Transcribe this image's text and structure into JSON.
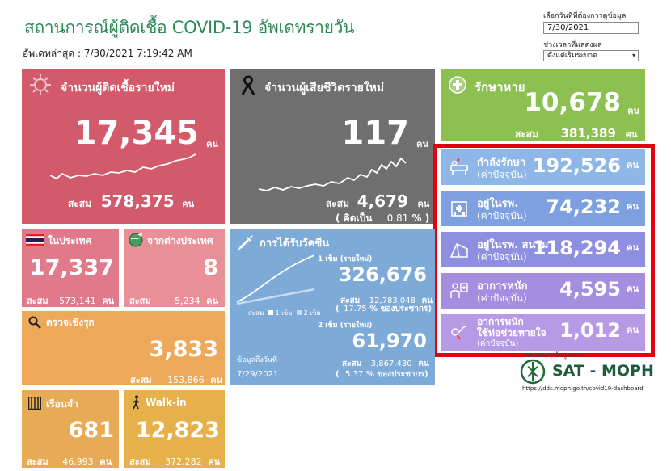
{
  "header": {
    "title": "สถานการณ์ผู้ติดเชื้อ COVID-19 อัพเดทรายวัน",
    "updated_label": "อัพเดทล่าสุด :",
    "updated_value": "7/30/2021 7:19:42 AM"
  },
  "controls": {
    "date_label": "เลือกวันที่ที่ต้องการดูข้อมูล",
    "date_value": "7/30/2021",
    "range_label": "ช่วงเวลาที่แสดงผล",
    "range_value": "ตั้งแต่เริ่มระบาด"
  },
  "new_cases": {
    "title": "จำนวนผู้ติดเชื้อรายใหม่",
    "value": "17,345",
    "unit": "คน",
    "cum_label": "สะสม",
    "cum_value": "578,375",
    "cum_unit": "คน"
  },
  "new_deaths": {
    "title": "จำนวนผู้เสียชีวิตรายใหม่",
    "value": "117",
    "unit": "คน",
    "cum_label": "สะสม",
    "cum_value": "4,679",
    "cum_unit": "คน",
    "pct_label": "( คิดเป็น",
    "pct_value": "0.81",
    "pct_suffix": "% )"
  },
  "recovered": {
    "title": "รักษาหาย",
    "value": "10,678",
    "unit": "คน",
    "cum_label": "สะสม",
    "cum_value": "381,389",
    "cum_unit": "คน"
  },
  "hospital": [
    {
      "line1": "กำลังรักษา",
      "line2": "(ค่าปัจจุบัน)",
      "value": "192,526",
      "unit": "คน",
      "color": "#8eb6e6",
      "icon": "hospital-bed-icon"
    },
    {
      "line1": "อยู่ในรพ.",
      "line2": "(ค่าปัจจุบัน)",
      "value": "74,232",
      "unit": "คน",
      "color": "#7fa0e0",
      "icon": "hospital-building-icon"
    },
    {
      "line1": "อยู่ในรพ. สนาม",
      "line2": "(ค่าปัจจุบัน)",
      "value": "118,294",
      "unit": "คน",
      "color": "#8e8fe0",
      "icon": "field-tent-icon"
    },
    {
      "line1": "อาการหนัก",
      "line2": "(ค่าปัจจุบัน)",
      "value": "4,595",
      "unit": "คน",
      "color": "#a48ee0",
      "icon": "severe-patient-icon"
    },
    {
      "line1": "อาการหนัก",
      "line2": "ใช้ท่อช่วยหายใจ",
      "line3": "(ค่าปัจจุบัน)",
      "value": "1,012",
      "unit": "คน",
      "color": "#b79ae6",
      "icon": "ventilator-icon"
    }
  ],
  "local": {
    "title": "ในประเทศ",
    "value": "17,337",
    "cum_label": "สะสม",
    "cum_value": "573,141",
    "cum_unit": "คน"
  },
  "abroad": {
    "title": "จากต่างประเทศ",
    "value": "8",
    "cum_label": "สะสม",
    "cum_value": "5,234",
    "cum_unit": "คน"
  },
  "vaccine": {
    "title": "การได้รับวัคซีน",
    "dose1_label": "1 เข็ม (รายใหม่)",
    "dose1_value": "326,676",
    "dose1_cum_label": "สะสม",
    "dose1_cum_value": "12,783,048",
    "dose1_cum_unit": "คน",
    "dose1_pct": "17.75",
    "dose1_pct_suffix": "% ของประชากร)",
    "dose2_label": "2 เข็ม (รายใหม่)",
    "dose2_value": "61,970",
    "dose2_cum_label": "สะสม",
    "dose2_cum_value": "3,867,430",
    "dose2_cum_unit": "คน",
    "dose2_pct": "5.37",
    "dose2_pct_suffix": "% ของประชากร)",
    "legend_cum": "สะสม",
    "legend_d1": "1 เข็ม",
    "legend_d2": "2 เข็ม",
    "data_as_of_label": "ข้อมูลถึงวันที่",
    "data_as_of_value": "7/29/2021"
  },
  "screening": {
    "title": "ตรวจเชิงรุก",
    "value": "3,833",
    "cum_label": "สะสม",
    "cum_value": "153,866",
    "cum_unit": "คน"
  },
  "prison": {
    "title": "เรือนจำ",
    "value": "681",
    "cum_label": "สะสม",
    "cum_value": "46,993",
    "cum_unit": "คน"
  },
  "walkin": {
    "title": "Walk-in",
    "value": "12,823",
    "cum_label": "สะสม",
    "cum_value": "372,282",
    "cum_unit": "คน"
  },
  "footer": {
    "note": "หมายเหตุ ข้อมูลจาก",
    "brand": "SAT - MOPH",
    "url": "https://ddc.moph.go.th/covid19-dashboard"
  }
}
